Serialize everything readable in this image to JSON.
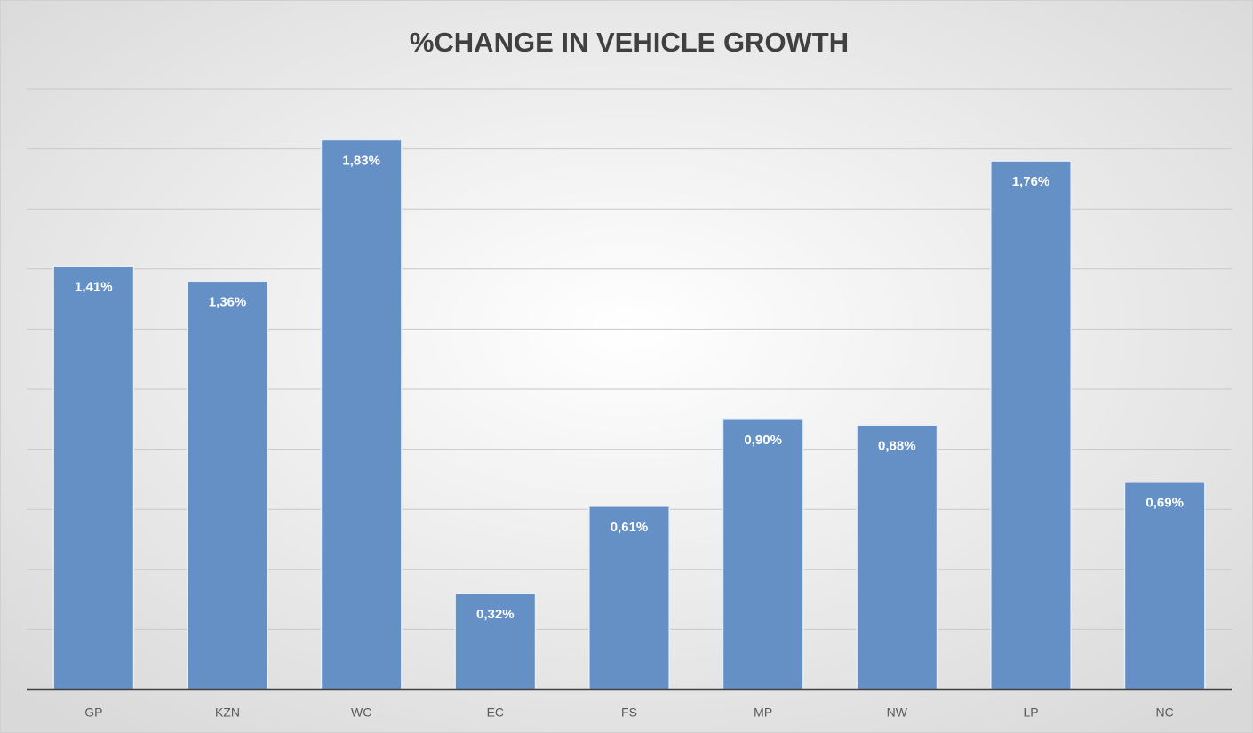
{
  "chart_data": {
    "type": "bar",
    "title": "%CHANGE IN VEHICLE GROWTH",
    "categories": [
      "GP",
      "KZN",
      "WC",
      "EC",
      "FS",
      "MP",
      "NW",
      "LP",
      "NC"
    ],
    "values": [
      1.41,
      1.36,
      1.83,
      0.32,
      0.61,
      0.9,
      0.88,
      1.76,
      0.69
    ],
    "value_labels": [
      "1,41%",
      "1,36%",
      "1,83%",
      "0,32%",
      "0,61%",
      "0,90%",
      "0,88%",
      "1,76%",
      "0,69%"
    ],
    "color": "#6490c6",
    "ylim": [
      0,
      2
    ],
    "yticks": [
      0,
      0.2,
      0.4,
      0.6,
      0.8,
      1,
      1.2,
      1.4,
      1.6,
      1.8,
      2
    ],
    "grid": true
  }
}
